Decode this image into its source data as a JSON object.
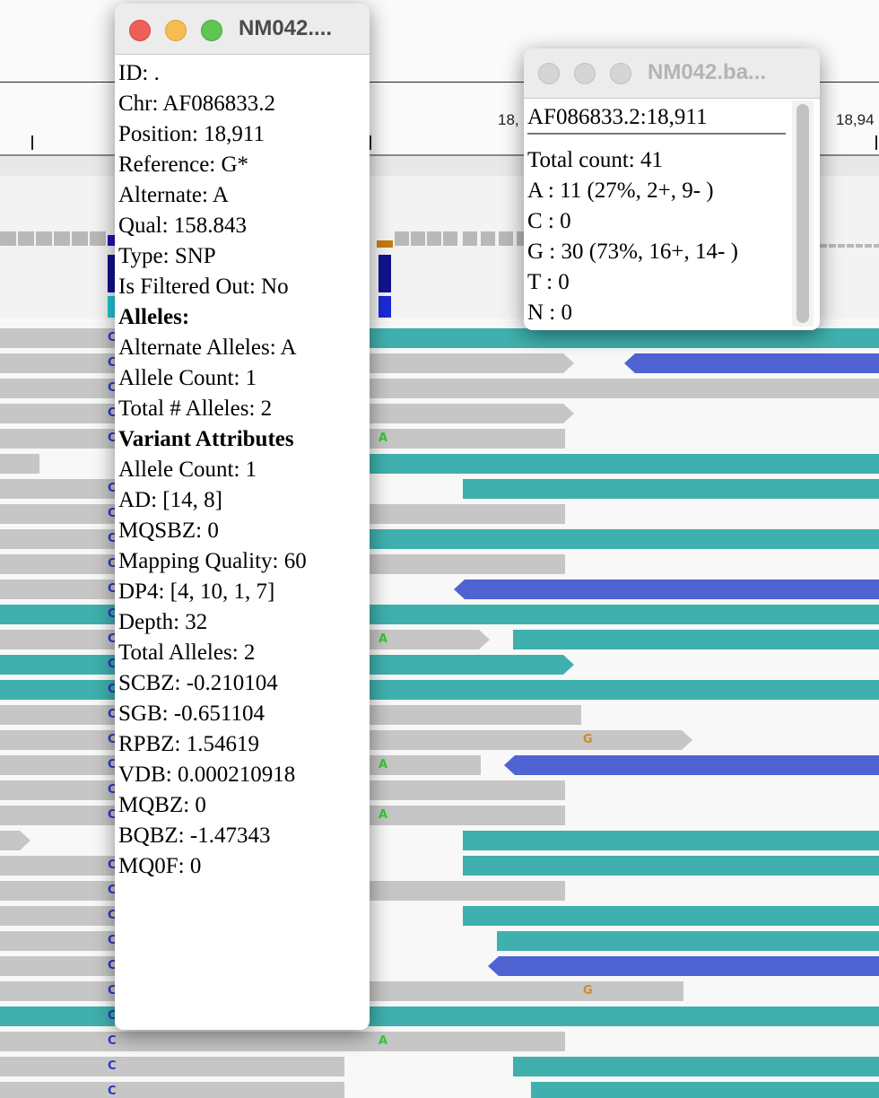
{
  "ruler": {
    "labels": [
      {
        "text": "18,"
      },
      {
        "text": "18,94"
      }
    ]
  },
  "reads_bases": [
    "C",
    "A",
    "G"
  ],
  "popup_variant": {
    "title": "NM042....",
    "lines": [
      {
        "text": "ID: .",
        "bold": false
      },
      {
        "text": "Chr: AF086833.2",
        "bold": false
      },
      {
        "text": "Position: 18,911",
        "bold": false
      },
      {
        "text": "Reference: G*",
        "bold": false
      },
      {
        "text": "Alternate: A",
        "bold": false
      },
      {
        "text": "Qual: 158.843",
        "bold": false
      },
      {
        "text": "Type: SNP",
        "bold": false
      },
      {
        "text": "Is Filtered Out: No",
        "bold": false
      },
      {
        "text": "Alleles:",
        "bold": true
      },
      {
        "text": "Alternate Alleles: A",
        "bold": false
      },
      {
        "text": "Allele Count: 1",
        "bold": false
      },
      {
        "text": "Total # Alleles: 2",
        "bold": false
      },
      {
        "text": "Variant Attributes",
        "bold": true
      },
      {
        "text": "Allele Count: 1",
        "bold": false
      },
      {
        "text": "AD: [14, 8]",
        "bold": false
      },
      {
        "text": "MQSBZ: 0",
        "bold": false
      },
      {
        "text": "Mapping Quality: 60",
        "bold": false
      },
      {
        "text": "DP4: [4, 10, 1, 7]",
        "bold": false
      },
      {
        "text": "Depth: 32",
        "bold": false
      },
      {
        "text": "Total Alleles: 2",
        "bold": false
      },
      {
        "text": "SCBZ: -0.210104",
        "bold": false
      },
      {
        "text": "SGB: -0.651104",
        "bold": false
      },
      {
        "text": "RPBZ: 1.54619",
        "bold": false
      },
      {
        "text": "VDB: 0.000210918",
        "bold": false
      },
      {
        "text": "MQBZ: 0",
        "bold": false
      },
      {
        "text": "BQBZ: -1.47343",
        "bold": false
      },
      {
        "text": "MQ0F: 0",
        "bold": false
      }
    ]
  },
  "popup_counts": {
    "title": "NM042.ba...",
    "header": "AF086833.2:18,911",
    "lines": [
      "Total count: 41",
      "A : 11 (27%, 2+, 9- )",
      "C : 0",
      "G : 30 (73%, 16+, 14- )",
      "T : 0",
      "N : 0"
    ]
  },
  "colors": {
    "read_gray": "#c6c6c6",
    "read_teal": "#3fb0ad",
    "read_blue": "#4f63d2",
    "base_c": "#2a36c8",
    "base_a": "#2ecc2e",
    "base_g": "#cc8a2a",
    "close": "#ee5f57",
    "minimize": "#f5bd4f",
    "zoom": "#5fc553",
    "inactive_light": "#d5d5d5"
  }
}
